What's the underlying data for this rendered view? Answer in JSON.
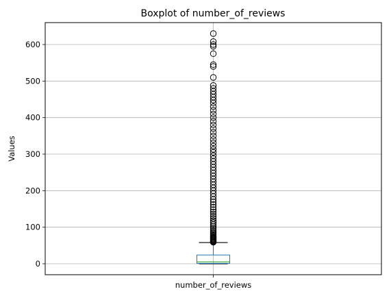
{
  "chart_data": {
    "type": "boxplot",
    "title": "Boxplot of number_of_reviews",
    "xlabel": "",
    "ylabel": "Values",
    "categories": [
      "number_of_reviews"
    ],
    "ylim": [
      -30,
      660
    ],
    "yticks": [
      0,
      100,
      200,
      300,
      400,
      500,
      600
    ],
    "grid": true,
    "box": {
      "whisker_low": 0,
      "q1": 1,
      "median": 5,
      "q3": 24,
      "whisker_high": 58
    },
    "outliers": [
      59,
      60,
      62,
      64,
      66,
      68,
      70,
      72,
      74,
      77,
      80,
      83,
      86,
      90,
      94,
      98,
      103,
      108,
      113,
      118,
      124,
      130,
      136,
      142,
      148,
      155,
      162,
      169,
      176,
      184,
      192,
      200,
      208,
      216,
      224,
      232,
      240,
      248,
      256,
      264,
      272,
      280,
      288,
      296,
      305,
      313,
      322,
      331,
      340,
      350,
      360,
      370,
      380,
      390,
      400,
      410,
      420,
      430,
      440,
      448,
      456,
      464,
      472,
      480,
      488,
      510,
      540,
      545,
      575,
      595,
      600,
      608,
      630
    ],
    "colors": {
      "box": "#1f77b4",
      "median": "#2ca02c",
      "whisker": "#000000",
      "outlier": "#000000",
      "grid": "#b0b0b0"
    }
  }
}
